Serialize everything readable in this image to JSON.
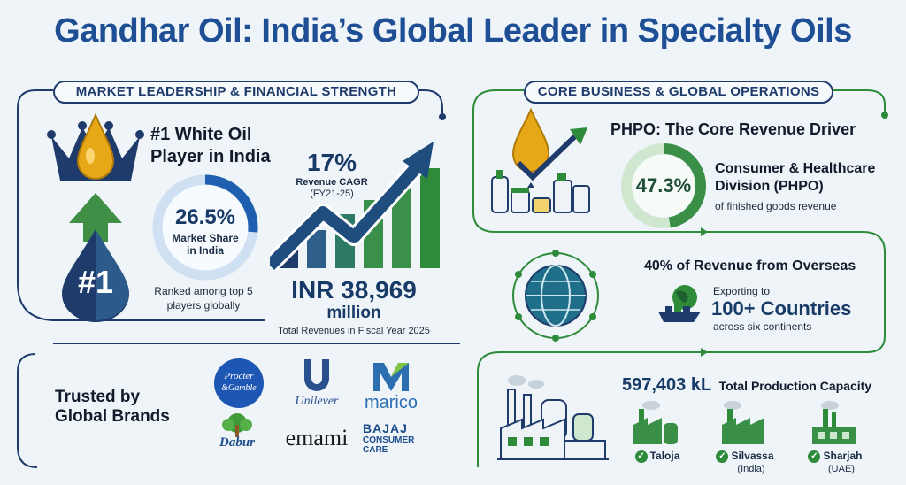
{
  "title": "Gandhar Oil: India’s Global Leader in Specialty Oils",
  "colors": {
    "navy": "#1e4f95",
    "green": "#2e8b3a",
    "teal": "#1f7a6e",
    "gold": "#e6a817"
  },
  "left": {
    "section_label": "MARKET LEADERSHIP & FINANCIAL STRENGTH",
    "leader": {
      "line1": "#1 White Oil",
      "line2": "Player in India",
      "badge": "#1"
    },
    "share": {
      "value": "26.5%",
      "line1": "Market Share",
      "line2": "in India",
      "fraction": 0.265
    },
    "ranked": {
      "line1": "Ranked among top 5",
      "line2": "players globally"
    },
    "cagr": {
      "value": "17%",
      "label": "Revenue CAGR",
      "period": "(FY21-25)"
    },
    "revenue": {
      "line1": "INR 38,969",
      "line2": "million",
      "caption": "Total Revenues in Fiscal Year 2025"
    },
    "trusted": {
      "line1": "Trusted by",
      "line2": "Global Brands"
    },
    "brands": {
      "pg_line1": "Procter",
      "pg_line2": "&Gamble",
      "unilever": "Unilever",
      "marico": "marico",
      "dabur": "Dabur",
      "emami": "emami",
      "bajaj_line1": "BAJAJ",
      "bajaj_line2": "CONSUMER",
      "bajaj_line3": "CARE"
    }
  },
  "right": {
    "section_label": "CORE BUSINESS & GLOBAL OPERATIONS",
    "phpo": {
      "title": "PHPO: The Core Revenue Driver",
      "value": "47.3%",
      "fraction": 0.473,
      "line1": "Consumer & Healthcare",
      "line2": "Division (PHPO)",
      "caption": "of finished goods revenue"
    },
    "overseas": {
      "title": "40% of Revenue from Overseas",
      "exporting": "Exporting to",
      "countries": "100+ Countries",
      "continents": "across six continents"
    },
    "capacity": {
      "value": "597,403 kL",
      "label": "Total Production Capacity",
      "plants": [
        {
          "name": "Taloja",
          "sub": ""
        },
        {
          "name": "Silvassa",
          "sub": "(India)"
        },
        {
          "name": "Sharjah",
          "sub": "(UAE)"
        }
      ]
    }
  }
}
